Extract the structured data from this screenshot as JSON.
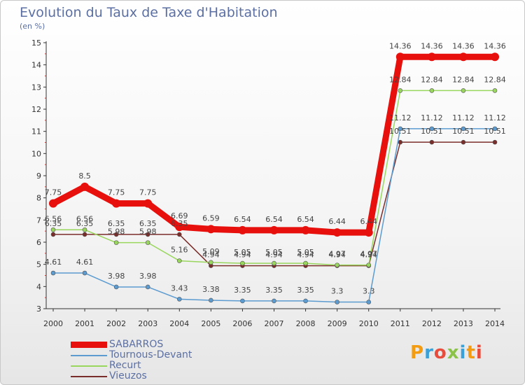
{
  "title": "Evolution du Taux de Taxe d'Habitation",
  "unit": "(en %)",
  "brand": "Proxiti",
  "chart_data": {
    "type": "line",
    "title": "Evolution du Taux de Taxe d'Habitation",
    "ylabel": "(en %)",
    "xlabel": "",
    "ylim": [
      3,
      15
    ],
    "yticks": [
      3,
      4,
      5,
      6,
      7,
      8,
      9,
      10,
      11,
      12,
      13,
      14,
      15
    ],
    "grid": false,
    "legend": "bottom-left",
    "categories": [
      "2000",
      "2001",
      "2002",
      "2003",
      "2004",
      "2005",
      "2006",
      "2007",
      "2008",
      "2009",
      "2010",
      "2011",
      "2012",
      "2013",
      "2014"
    ],
    "series": [
      {
        "name": "SABARROS",
        "color": "#e8100d",
        "values": [
          7.75,
          8.5,
          7.75,
          7.75,
          6.69,
          6.59,
          6.54,
          6.54,
          6.54,
          6.44,
          6.44,
          14.36,
          14.36,
          14.36,
          14.36
        ],
        "labels": [
          "7.75",
          "8.5",
          "7.75",
          "7.75",
          "6.69",
          "6.59",
          "6.54",
          "6.54",
          "6.54",
          "6.44",
          "6.44",
          "14.36",
          "14.36",
          "14.36",
          "14.36"
        ]
      },
      {
        "name": "Tournous-Devant",
        "color": "#5b9bd0",
        "values": [
          4.61,
          4.61,
          3.98,
          3.98,
          3.43,
          3.38,
          3.35,
          3.35,
          3.35,
          3.3,
          3.3,
          11.12,
          11.12,
          11.12,
          11.12
        ],
        "labels": [
          "4.61",
          "4.61",
          "3.98",
          "3.98",
          "3.43",
          "3.38",
          "3.35",
          "3.35",
          "3.35",
          "3.3",
          "3.3",
          "11.12",
          "11.12",
          "11.12",
          "11.12"
        ]
      },
      {
        "name": "Recurt",
        "color": "#99d65d",
        "values": [
          6.56,
          6.56,
          5.98,
          5.98,
          5.16,
          5.09,
          5.05,
          5.05,
          5.05,
          4.97,
          4.97,
          12.84,
          12.84,
          12.84,
          12.84
        ],
        "labels": [
          "6.56",
          "6.56",
          "5.98",
          "5.98",
          "5.16",
          "5.09",
          "5.05",
          "5.05",
          "5.05",
          "4.97",
          "4.97",
          "12.84",
          "12.84",
          "12.84",
          "12.84"
        ]
      },
      {
        "name": "Vieuzos",
        "color": "#7a2e2b",
        "values": [
          6.35,
          6.35,
          6.35,
          6.35,
          6.35,
          4.94,
          4.94,
          4.94,
          4.94,
          4.94,
          4.94,
          10.51,
          10.51,
          10.51,
          10.51
        ],
        "labels": [
          "6.35",
          "6.35",
          "6.35",
          "6.35",
          "6.35",
          "4.94",
          "4.94",
          "4.94",
          "4.94",
          "4.94",
          "4.94",
          "10.51",
          "10.51",
          "10.51",
          "10.51"
        ]
      }
    ]
  }
}
